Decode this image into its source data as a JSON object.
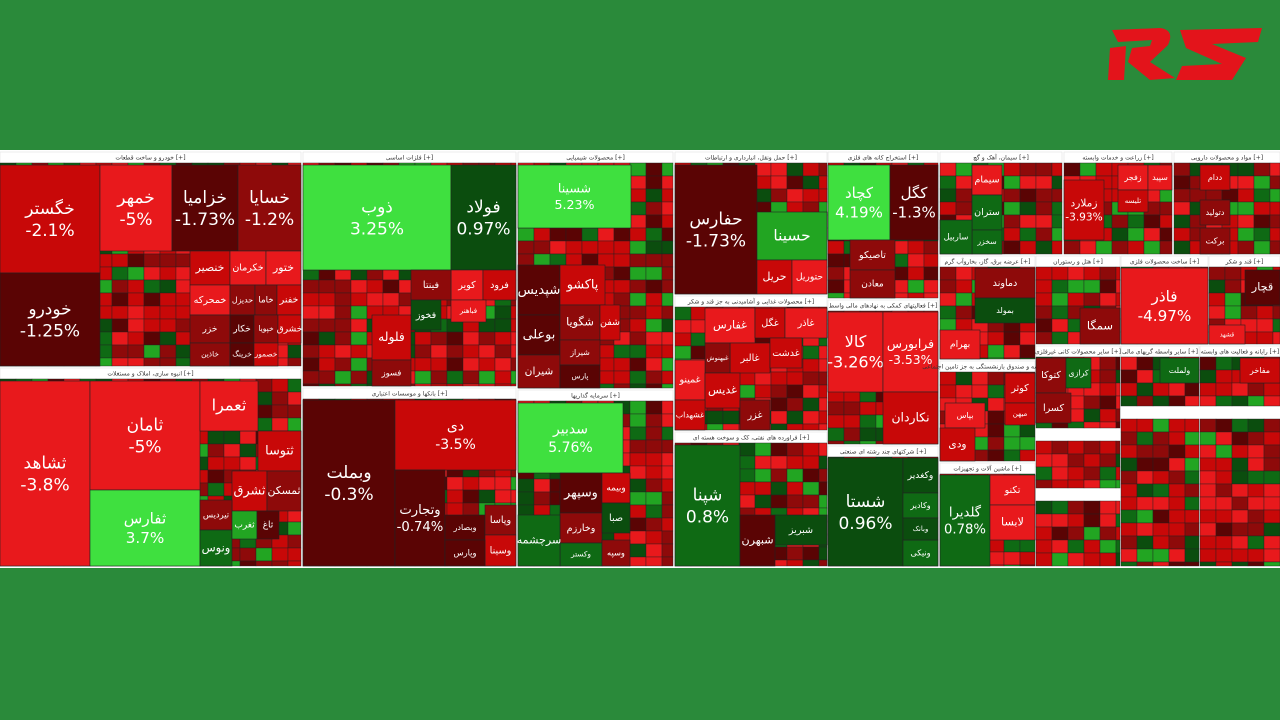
{
  "treemap": {
    "sectors": [
      {
        "title": "خودرو و ساخت قطعات [+]",
        "tiles": [
          {
            "label": "خگستر",
            "change": "-2.1%"
          },
          {
            "label": "خودرو",
            "change": "-1.25%"
          },
          {
            "label": "خمهر",
            "change": "-5%"
          },
          {
            "label": "خزامیا",
            "change": "-1.73%"
          },
          {
            "label": "خسایا",
            "change": "-1.2%"
          },
          {
            "label": "خنصیر"
          },
          {
            "label": "خکرمان"
          },
          {
            "label": "ختور"
          },
          {
            "label": "خمحرکه"
          },
          {
            "label": "حدیزل"
          },
          {
            "label": "خاما"
          },
          {
            "label": "خفنر"
          },
          {
            "label": "خزر"
          },
          {
            "label": "خکار"
          },
          {
            "label": "خپویا"
          },
          {
            "label": "خشرق"
          },
          {
            "label": "خاذین"
          },
          {
            "label": "خرینگ"
          },
          {
            "label": "خصمور"
          }
        ]
      },
      {
        "title": "انبوه سازی، املاک و مستغلات [+]",
        "tiles": [
          {
            "label": "ثشاهد",
            "change": "-3.8%"
          },
          {
            "label": "ثامان",
            "change": "-5%"
          },
          {
            "label": "ثفارس",
            "change": "3.7%"
          },
          {
            "label": "ثعمرا"
          },
          {
            "label": "ثتوسا"
          },
          {
            "label": "ثشرق"
          },
          {
            "label": "تیردیس"
          },
          {
            "label": "ثمسکن"
          },
          {
            "label": "ونوس"
          },
          {
            "label": "ثغرب"
          },
          {
            "label": "ثاغ"
          }
        ]
      },
      {
        "title": "فلزات اساسی [+]",
        "tiles": [
          {
            "label": "ذوب",
            "change": "3.25%"
          },
          {
            "label": "فولاد",
            "change": "0.97%"
          },
          {
            "label": "کویر"
          },
          {
            "label": "فرود"
          },
          {
            "label": "فینتا"
          },
          {
            "label": "فخوز"
          },
          {
            "label": "فباهنر"
          },
          {
            "label": "فلوله"
          },
          {
            "label": "فسوز"
          }
        ]
      },
      {
        "title": "بانکها و موسسات اعتباری [+]",
        "tiles": [
          {
            "label": "وبملت",
            "change": "-0.3%"
          },
          {
            "label": "دی",
            "change": "-3.5%"
          },
          {
            "label": "وتجارت",
            "change": "-0.74%"
          },
          {
            "label": "وبصادر"
          },
          {
            "label": "وپاسا"
          },
          {
            "label": "وسینا"
          },
          {
            "label": "وپارس"
          }
        ]
      },
      {
        "title": "محصولات شیمیایی [+]",
        "tiles": [
          {
            "label": "شسینا",
            "change": "5.23%"
          },
          {
            "label": "شپدیس"
          },
          {
            "label": "بوعلی"
          },
          {
            "label": "شیران"
          },
          {
            "label": "پاکشو"
          },
          {
            "label": "شگویا"
          },
          {
            "label": "شیراز"
          },
          {
            "label": "پارس"
          },
          {
            "label": "شفن"
          }
        ]
      },
      {
        "title": "سرمایه گذاریها [+]",
        "tiles": [
          {
            "label": "سدبیر",
            "change": "5.76%"
          },
          {
            "label": "وسپهر"
          },
          {
            "label": "وبیمه"
          },
          {
            "label": "وخارزم"
          },
          {
            "label": "صبا"
          },
          {
            "label": "وکستر"
          },
          {
            "label": "سرچشمه"
          },
          {
            "label": "وسپه"
          }
        ]
      },
      {
        "title": "حمل ونقل، انبارداری و ارتباطات [+]",
        "tiles": [
          {
            "label": "حفارس",
            "change": "-1.73%"
          },
          {
            "label": "حسینا"
          },
          {
            "label": "حریل"
          },
          {
            "label": "حتوریل"
          }
        ]
      },
      {
        "title": "محصولات غذایی و آشامیدنی به جز قند و شکر [+]",
        "tiles": [
          {
            "label": "غفارس"
          },
          {
            "label": "غگل"
          },
          {
            "label": "غاذر"
          },
          {
            "label": "غالبر"
          },
          {
            "label": "غدشت"
          },
          {
            "label": "غبهنوش"
          },
          {
            "label": "غمینو"
          },
          {
            "label": "غدیس"
          },
          {
            "label": "غزر"
          },
          {
            "label": "غشهداب"
          }
        ]
      },
      {
        "title": "فراورده های نفتی، کک و سوخت هسته ای [+]",
        "tiles": [
          {
            "label": "شپنا",
            "change": "0.8%"
          },
          {
            "label": "شبریز"
          },
          {
            "label": "شبهرن"
          }
        ]
      },
      {
        "title": "استخراج کانه های فلزی [+]",
        "tiles": [
          {
            "label": "کچاد",
            "change": "4.19%"
          },
          {
            "label": "کگل",
            "change": "-1.3%"
          },
          {
            "label": "تاصیکو"
          },
          {
            "label": "معادن"
          }
        ]
      },
      {
        "title": "فعالیتهای کمکی به نهادهای مالی واسط [+]",
        "tiles": [
          {
            "label": "کالا",
            "change": "-3.26%"
          },
          {
            "label": "فرابورس",
            "change": "-3.53%"
          },
          {
            "label": "نکاردان"
          }
        ]
      },
      {
        "title": "شرکتهای چند رشته ای صنعتی [+]",
        "tiles": [
          {
            "label": "شستا",
            "change": "0.96%"
          },
          {
            "label": "وکغدیر"
          },
          {
            "label": "وکادیر"
          },
          {
            "label": "ونیکی"
          },
          {
            "label": "وبانک"
          }
        ]
      },
      {
        "title": "سیمان، آهک و گچ [+]",
        "tiles": [
          {
            "label": "سیمام"
          },
          {
            "label": "ستران"
          },
          {
            "label": "سخزر"
          },
          {
            "label": "ساربیل"
          }
        ]
      },
      {
        "title": "زراعت و خدمات وابسته [+]",
        "tiles": [
          {
            "label": "زملارد",
            "change": "-3.93%"
          },
          {
            "label": "زفجر"
          },
          {
            "label": "سپید"
          },
          {
            "label": "تلیسه"
          }
        ]
      },
      {
        "title": "مواد و محصولات دارویی [+]",
        "tiles": [
          {
            "label": "ددام"
          },
          {
            "label": "دتولید"
          },
          {
            "label": "برکت"
          }
        ]
      },
      {
        "title": "عرضه برق، گاز، بخاروآب گرم [+]",
        "tiles": [
          {
            "label": "دماوند"
          },
          {
            "label": "بمولد"
          },
          {
            "label": "بهرام"
          }
        ]
      },
      {
        "title": "هتل و رستوران [+]",
        "tiles": [
          {
            "label": "سمگا"
          }
        ]
      },
      {
        "title": "ساخت محصولات فلزی [+]",
        "tiles": [
          {
            "label": "فاذر",
            "change": "-4.97%"
          }
        ]
      },
      {
        "title": "قند و شکر [+]",
        "tiles": [
          {
            "label": "قچار"
          },
          {
            "label": "قشهد"
          }
        ]
      },
      {
        "title": "بیمه و صندوق بازنشستگی به جز تامین اجتماعی [+]",
        "tiles": [
          {
            "label": "کوثر"
          },
          {
            "label": "میهن"
          },
          {
            "label": "بپاس"
          },
          {
            "label": "ودی"
          }
        ]
      },
      {
        "title": "ماشین آلات و تجهیزات [+]",
        "tiles": [
          {
            "label": "گلدیرا",
            "change": "0.78%"
          },
          {
            "label": "تکنو"
          },
          {
            "label": "لابسا"
          }
        ]
      },
      {
        "title": "سایر محصولات کانی غیرفلزی [+]",
        "tiles": [
          {
            "label": "کتوکا"
          },
          {
            "label": "کرازی"
          },
          {
            "label": "کسرا"
          }
        ]
      },
      {
        "title": "سایر واسطه گریهای مالی [+]",
        "tiles": [
          {
            "label": "ولملت"
          }
        ]
      },
      {
        "title": "رایانه و فعالیت های وابسته [+]",
        "tiles": [
          {
            "label": "مفاخر"
          }
        ]
      }
    ]
  }
}
